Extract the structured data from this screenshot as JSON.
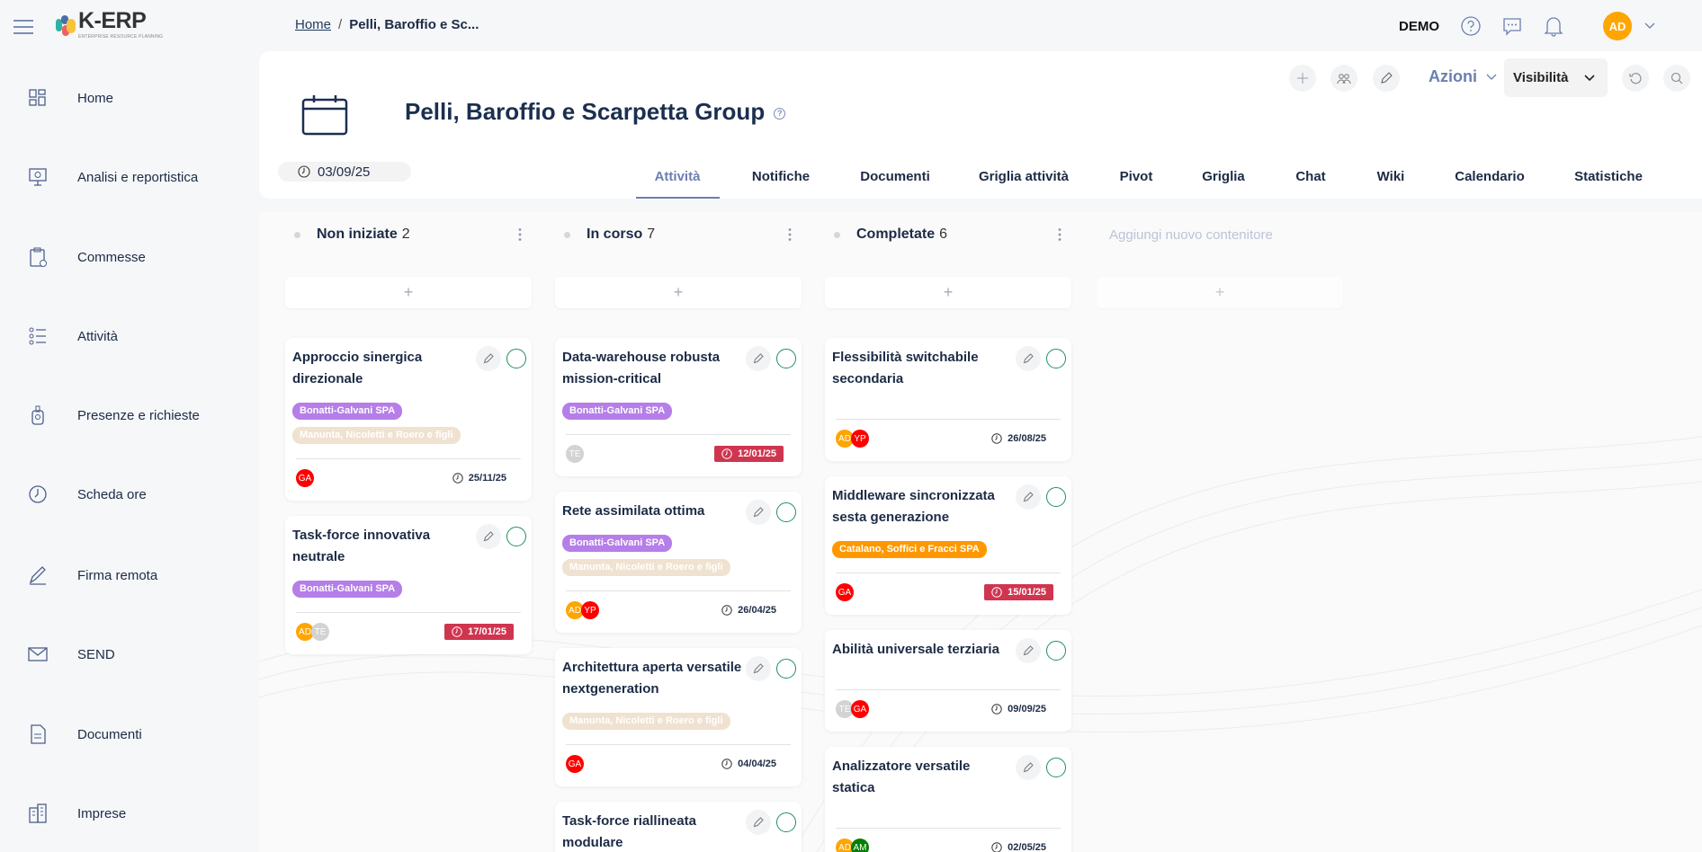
{
  "app": {
    "logo_text": "K-ERP",
    "logo_sub": "ENTERPRISE RESOURCE PLANNING"
  },
  "breadcrumb": {
    "home": "Home",
    "separator": "/",
    "current": "Pelli, Baroffio e Sc..."
  },
  "topbar": {
    "env": "DEMO",
    "user_initials": "AD",
    "user_color": "#ffa500"
  },
  "sidebar": {
    "items": [
      {
        "label": "Home",
        "icon": "dashboard-icon"
      },
      {
        "label": "Analisi e reportistica",
        "icon": "presentation-icon"
      },
      {
        "label": "Commesse",
        "icon": "clipboard-icon"
      },
      {
        "label": "Attività",
        "icon": "list-icon"
      },
      {
        "label": "Presenze e richieste",
        "icon": "badge-icon"
      },
      {
        "label": "Scheda ore",
        "icon": "clock-icon"
      },
      {
        "label": "Firma remota",
        "icon": "signature-icon"
      },
      {
        "label": "SEND",
        "icon": "envelope-icon"
      },
      {
        "label": "Documenti",
        "icon": "document-icon"
      },
      {
        "label": "Imprese",
        "icon": "building-icon"
      }
    ]
  },
  "header": {
    "title": "Pelli, Baroffio e Scarpetta Group",
    "help": "?",
    "date": "03/09/25",
    "actions_label": "Azioni",
    "visibility_label": "Visibilità",
    "tabs": [
      "Attività",
      "Notifiche",
      "Documenti",
      "Griglia attività",
      "Pivot",
      "Griglia",
      "Chat",
      "Wiki",
      "Calendario",
      "Statistiche"
    ],
    "active_tab": "Attività"
  },
  "colors": {
    "accent": "#6b7fb0",
    "overdue": "#d0354f",
    "check": "#1e8f5e"
  },
  "tag_colors": {
    "Bonatti-Galvani SPA": "#b57ee8",
    "Manunta, Nicoletti e Roero e figli": "#f0e2d0",
    "Catalano, Soffici e Fracci SPA": "#ff9800"
  },
  "avatar_colors": {
    "AD": "#ffa500",
    "YP": "#ff0000",
    "GA": "#ff0000",
    "TE": "#d3d3d3",
    "AM": "#008000"
  },
  "board": {
    "add_symbol": "+",
    "new_container": "Aggiungi nuovo contenitore",
    "columns": [
      {
        "name": "Non iniziate",
        "count": "2",
        "cards": [
          {
            "title": "Approccio sinergica direzionale",
            "tags": [
              "Bonatti-Galvani SPA",
              "Manunta, Nicoletti e Roero e figli"
            ],
            "assignees": [
              "GA"
            ],
            "due": "25/11/25",
            "overdue": false
          },
          {
            "title": "Task-force innovativa neutrale",
            "tags": [
              "Bonatti-Galvani SPA"
            ],
            "assignees": [
              "AD",
              "TE"
            ],
            "due": "17/01/25",
            "overdue": true
          }
        ]
      },
      {
        "name": "In corso",
        "count": "7",
        "cards": [
          {
            "title": "Data-warehouse robusta mission-critical",
            "tags": [
              "Bonatti-Galvani SPA"
            ],
            "assignees": [
              "TE"
            ],
            "due": "12/01/25",
            "overdue": true
          },
          {
            "title": "Rete assimilata ottima",
            "tags": [
              "Bonatti-Galvani SPA",
              "Manunta, Nicoletti e Roero e figli"
            ],
            "assignees": [
              "AD",
              "YP"
            ],
            "due": "26/04/25",
            "overdue": false
          },
          {
            "title": "Architettura aperta versatile nextgeneration",
            "tags": [
              "Manunta, Nicoletti e Roero e figli"
            ],
            "assignees": [
              "GA"
            ],
            "due": "04/04/25",
            "overdue": false
          },
          {
            "title": "Task-force riallineata modulare",
            "tags": [],
            "assignees": [],
            "due": null,
            "overdue": false
          }
        ]
      },
      {
        "name": "Completate",
        "count": "6",
        "cards": [
          {
            "title": "Flessibilità switchabile secondaria",
            "tags": [],
            "assignees": [
              "AD",
              "YP"
            ],
            "due": "26/08/25",
            "overdue": false
          },
          {
            "title": "Middleware sincronizzata sesta generazione",
            "tags": [
              "Catalano, Soffici e Fracci SPA"
            ],
            "assignees": [
              "GA"
            ],
            "due": "15/01/25",
            "overdue": true
          },
          {
            "title": "Abilità universale terziaria",
            "tags": [],
            "assignees": [
              "TE",
              "GA"
            ],
            "due": "09/09/25",
            "overdue": false
          },
          {
            "title": "Analizzatore versatile statica",
            "tags": [],
            "assignees": [
              "AD",
              "AM"
            ],
            "due": "02/05/25",
            "overdue": false
          }
        ]
      }
    ]
  }
}
